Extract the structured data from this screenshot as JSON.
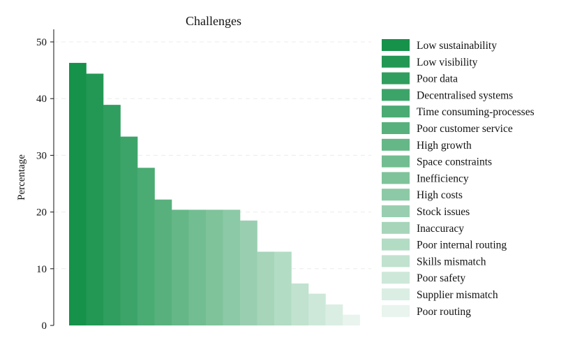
{
  "chart_data": {
    "type": "bar",
    "title": "Challenges",
    "xlabel": "",
    "ylabel": "Percentage",
    "ylim": [
      0,
      52
    ],
    "yticks": [
      0,
      10,
      20,
      30,
      40,
      50
    ],
    "grid": "horizontal dashed",
    "legend": "right",
    "base_color": "#16924a",
    "categories": [
      "Low sustainability",
      "Low visibility",
      "Poor data",
      "Decentralised systems",
      "Time consuming-processes",
      "Poor customer service",
      "High growth",
      "Space constraints",
      "Inefficiency",
      "High costs",
      "Stock issues",
      "Inaccuracy",
      "Poor internal routing",
      "Skills mismatch",
      "Poor safety",
      "Supplier mismatch",
      "Poor routing"
    ],
    "values": [
      46.3,
      44.4,
      38.9,
      33.3,
      27.8,
      22.2,
      20.4,
      20.4,
      20.4,
      20.4,
      18.5,
      13.0,
      13.0,
      7.4,
      5.6,
      3.7,
      1.9
    ]
  }
}
